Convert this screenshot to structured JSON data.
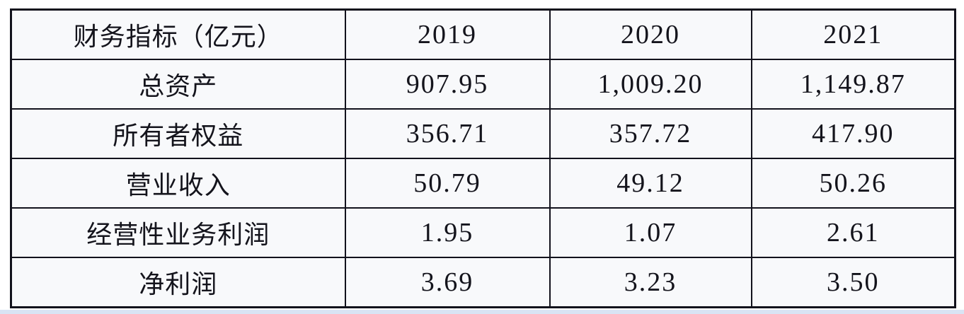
{
  "table": {
    "header": {
      "indicator_label": "财务指标（亿元）",
      "years": [
        "2019",
        "2020",
        "2021"
      ]
    },
    "rows": [
      {
        "label": "总资产",
        "values": [
          "907.95",
          "1,009.20",
          "1,149.87"
        ]
      },
      {
        "label": "所有者权益",
        "values": [
          "356.71",
          "357.72",
          "417.90"
        ]
      },
      {
        "label": "营业收入",
        "values": [
          "50.79",
          "49.12",
          "50.26"
        ]
      },
      {
        "label": "经营性业务利润",
        "values": [
          "1.95",
          "1.07",
          "2.61"
        ]
      },
      {
        "label": "净利润",
        "values": [
          "3.69",
          "3.23",
          "3.50"
        ]
      }
    ]
  },
  "chart_data": {
    "type": "table",
    "title": "财务指标（亿元）",
    "columns": [
      "财务指标（亿元）",
      "2019",
      "2020",
      "2021"
    ],
    "series": [
      {
        "name": "总资产",
        "values": [
          907.95,
          1009.2,
          1149.87
        ]
      },
      {
        "name": "所有者权益",
        "values": [
          356.71,
          357.72,
          417.9
        ]
      },
      {
        "name": "营业收入",
        "values": [
          50.79,
          49.12,
          50.26
        ]
      },
      {
        "name": "经营性业务利润",
        "values": [
          1.95,
          1.07,
          2.61
        ]
      },
      {
        "name": "净利润",
        "values": [
          3.69,
          3.23,
          3.5
        ]
      }
    ]
  },
  "colors": {
    "border": "#12121c",
    "cell_background": "#f8f9fb",
    "text": "#14141c",
    "page_background": "#ffffff",
    "bottom_strip": "#d9e4f4"
  }
}
